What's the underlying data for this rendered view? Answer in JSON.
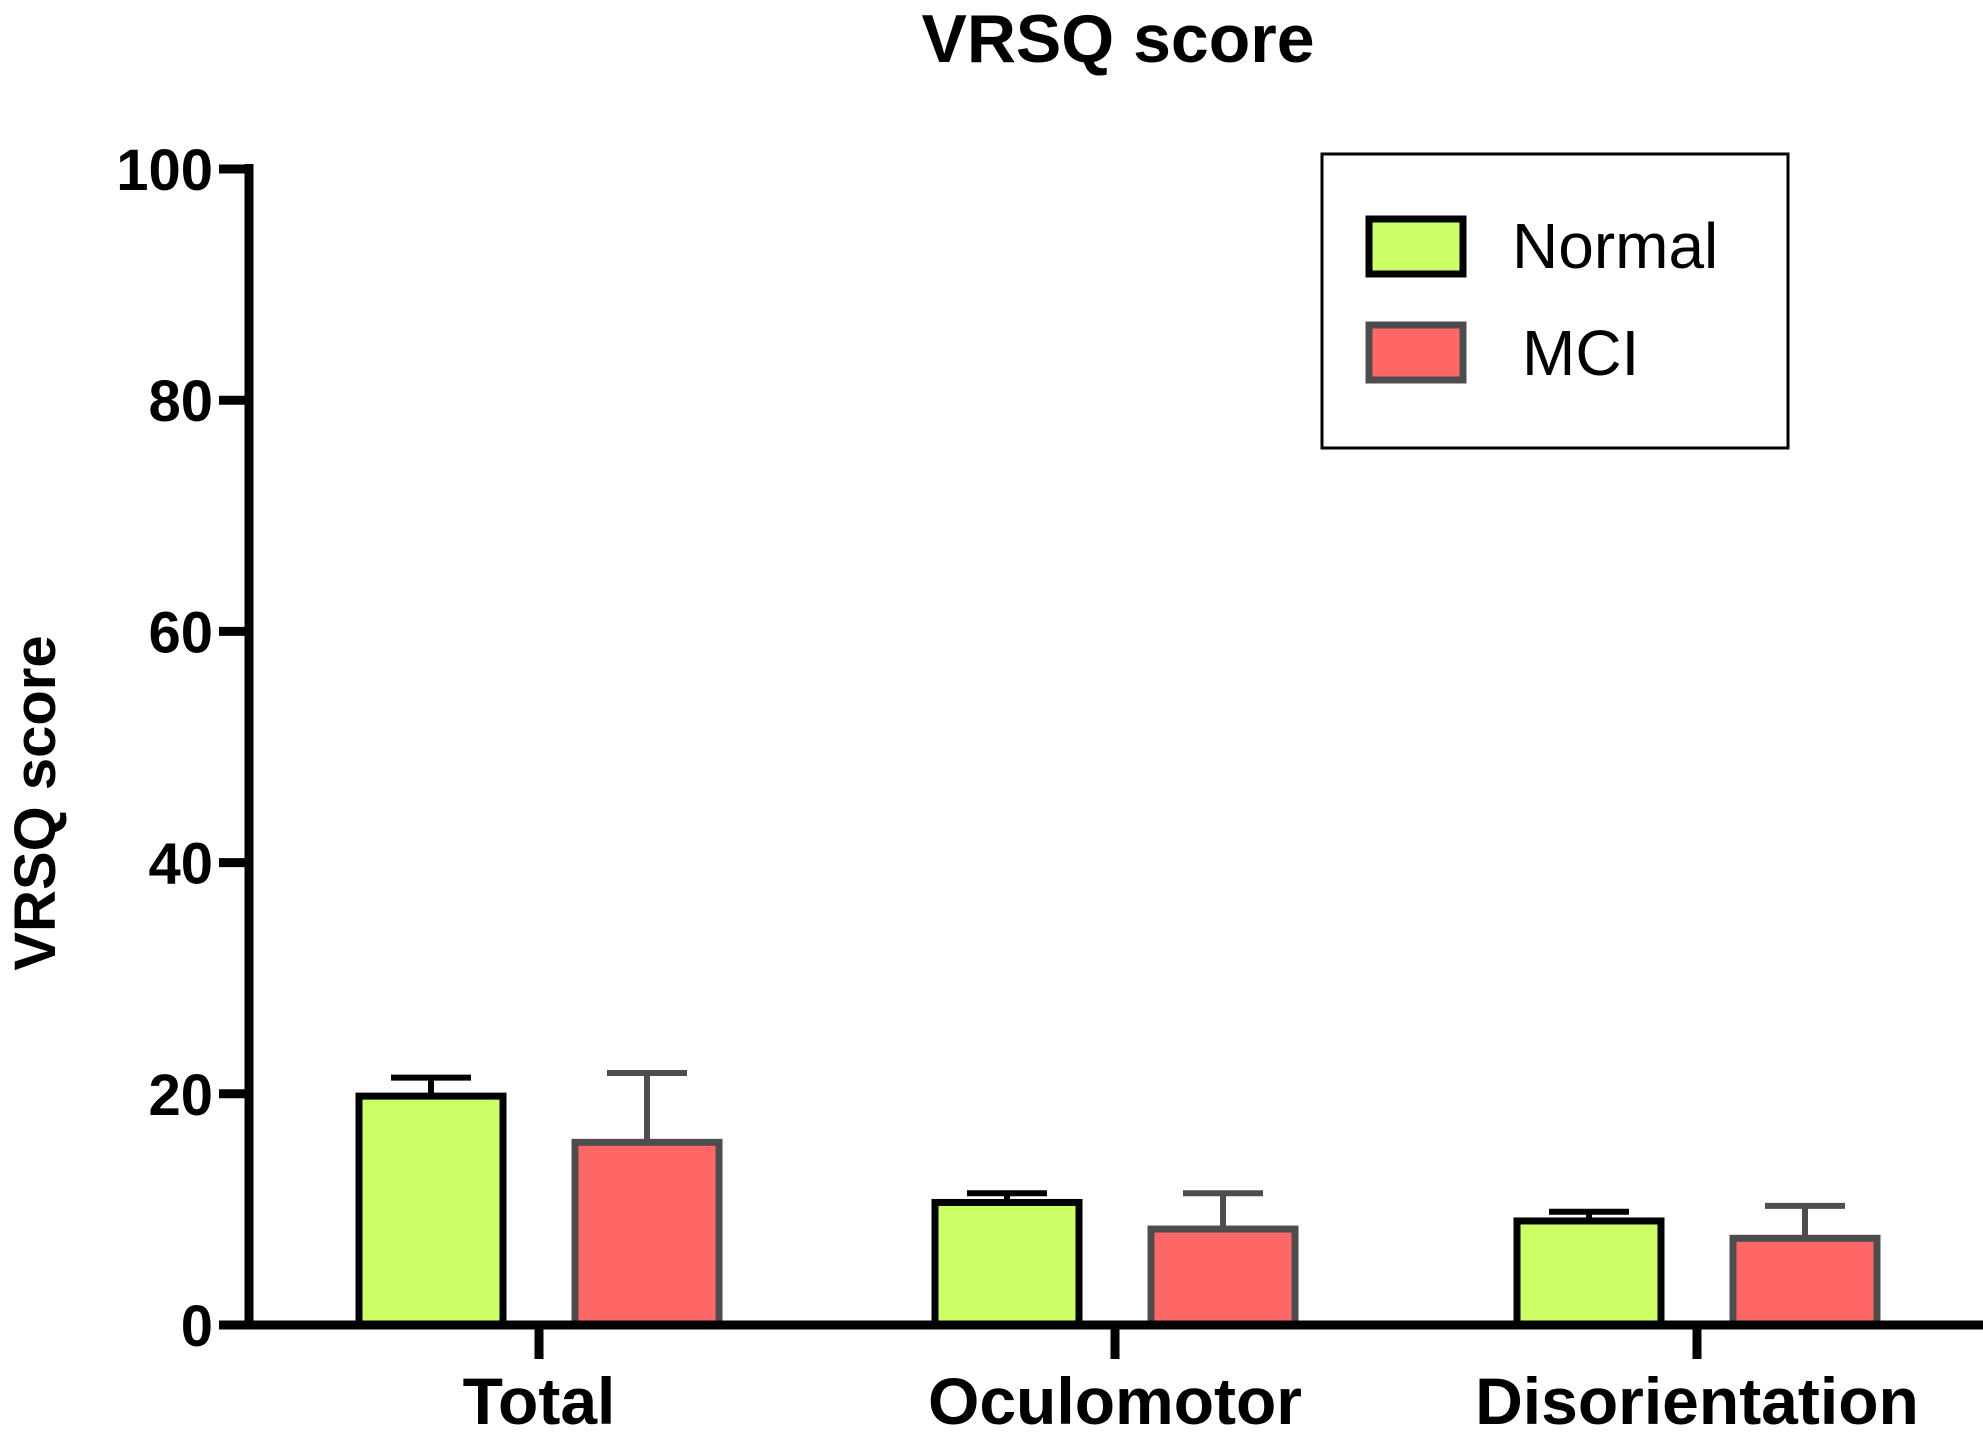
{
  "chart_data": {
    "type": "bar",
    "title": "VRSQ score",
    "xlabel": "",
    "ylabel": "VRSQ score",
    "ylim": [
      0,
      100
    ],
    "yticks": [
      0,
      20,
      40,
      60,
      80,
      100
    ],
    "categories": [
      "Total",
      "Oculomotor",
      "Disorientation"
    ],
    "series": [
      {
        "name": "Normal",
        "values": [
          19.8,
          10.6,
          9.0
        ],
        "errors": [
          1.6,
          0.8,
          0.8
        ],
        "color": "#ccff66",
        "edge": "#000000"
      },
      {
        "name": "MCI",
        "values": [
          15.8,
          8.3,
          7.5
        ],
        "errors": [
          6.0,
          3.1,
          2.8
        ],
        "color": "#ff6666",
        "edge": "#4d4d4d"
      }
    ],
    "legend": "top-right",
    "grid": false
  }
}
